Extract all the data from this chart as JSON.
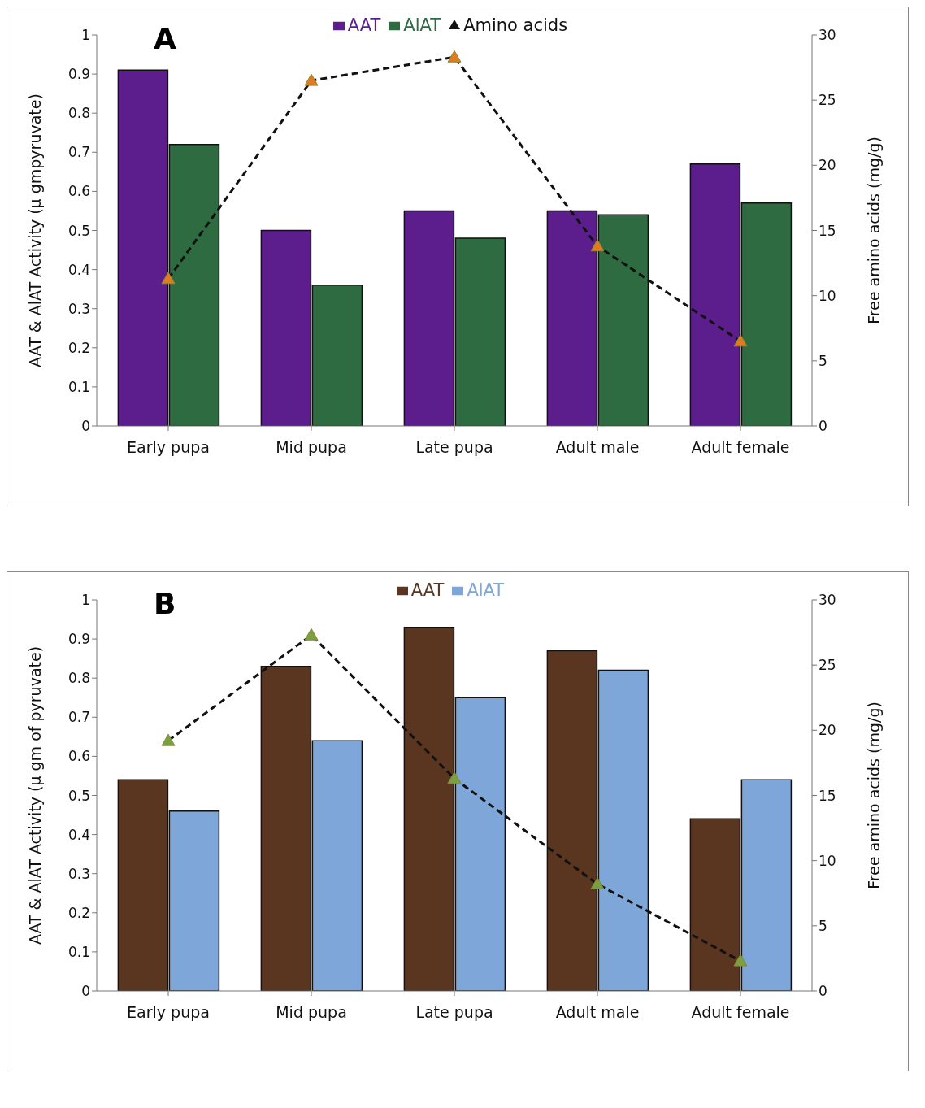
{
  "chart_data": [
    {
      "type": "bar",
      "annotations": [
        "A"
      ],
      "categories": [
        "Early pupa",
        "Mid pupa",
        "Late pupa",
        "Adult male",
        "Adult female"
      ],
      "ylabel": "AAT & AlAT Activity (μ gmpyruvate)",
      "y2label": "Free amino acids (mg/g)",
      "ylim": [
        0,
        1
      ],
      "yticks": [
        0,
        0.1,
        0.2,
        0.3,
        0.4,
        0.5,
        0.6,
        0.7,
        0.8,
        0.9,
        1
      ],
      "y2lim": [
        0,
        30
      ],
      "y2ticks": [
        0,
        5,
        10,
        15,
        20,
        25,
        30
      ],
      "legend": "top",
      "grid": false,
      "marker": "triangle",
      "line_style": "dashed",
      "series": [
        {
          "name": "AAT",
          "color": "#5b1e8c",
          "values": [
            0.91,
            0.5,
            0.55,
            0.55,
            0.67
          ]
        },
        {
          "name": "AlAT",
          "color": "#2e6b40",
          "values": [
            0.72,
            0.36,
            0.48,
            0.54,
            0.57
          ]
        },
        {
          "name": "Amino acids",
          "type": "line",
          "axis": "y2",
          "color": "#e07b20",
          "values": [
            11.3,
            26.5,
            28.3,
            13.8,
            6.5
          ]
        }
      ]
    },
    {
      "type": "bar",
      "annotations": [
        "B"
      ],
      "categories": [
        "Early pupa",
        "Mid pupa",
        "Late pupa",
        "Adult male",
        "Adult female"
      ],
      "ylabel": "AAT & AlAT Activity (μ gm of pyruvate)",
      "y2label": "Free amino acids (mg/g)",
      "ylim": [
        0,
        1
      ],
      "yticks": [
        0,
        0.1,
        0.2,
        0.3,
        0.4,
        0.5,
        0.6,
        0.7,
        0.8,
        0.9,
        1
      ],
      "y2lim": [
        0,
        30
      ],
      "y2ticks": [
        0,
        5,
        10,
        15,
        20,
        25,
        30
      ],
      "legend": "top",
      "grid": false,
      "marker": "triangle",
      "line_style": "dashed",
      "series": [
        {
          "name": "AAT",
          "color": "#5a3520",
          "values": [
            0.54,
            0.83,
            0.93,
            0.87,
            0.44
          ]
        },
        {
          "name": "AlAT",
          "color": "#7fa6d9",
          "values": [
            0.46,
            0.64,
            0.75,
            0.82,
            0.54
          ]
        },
        {
          "type": "line",
          "axis": "y2",
          "color": "#7aa040",
          "values": [
            19.2,
            27.3,
            16.3,
            8.2,
            2.3
          ]
        }
      ]
    }
  ]
}
